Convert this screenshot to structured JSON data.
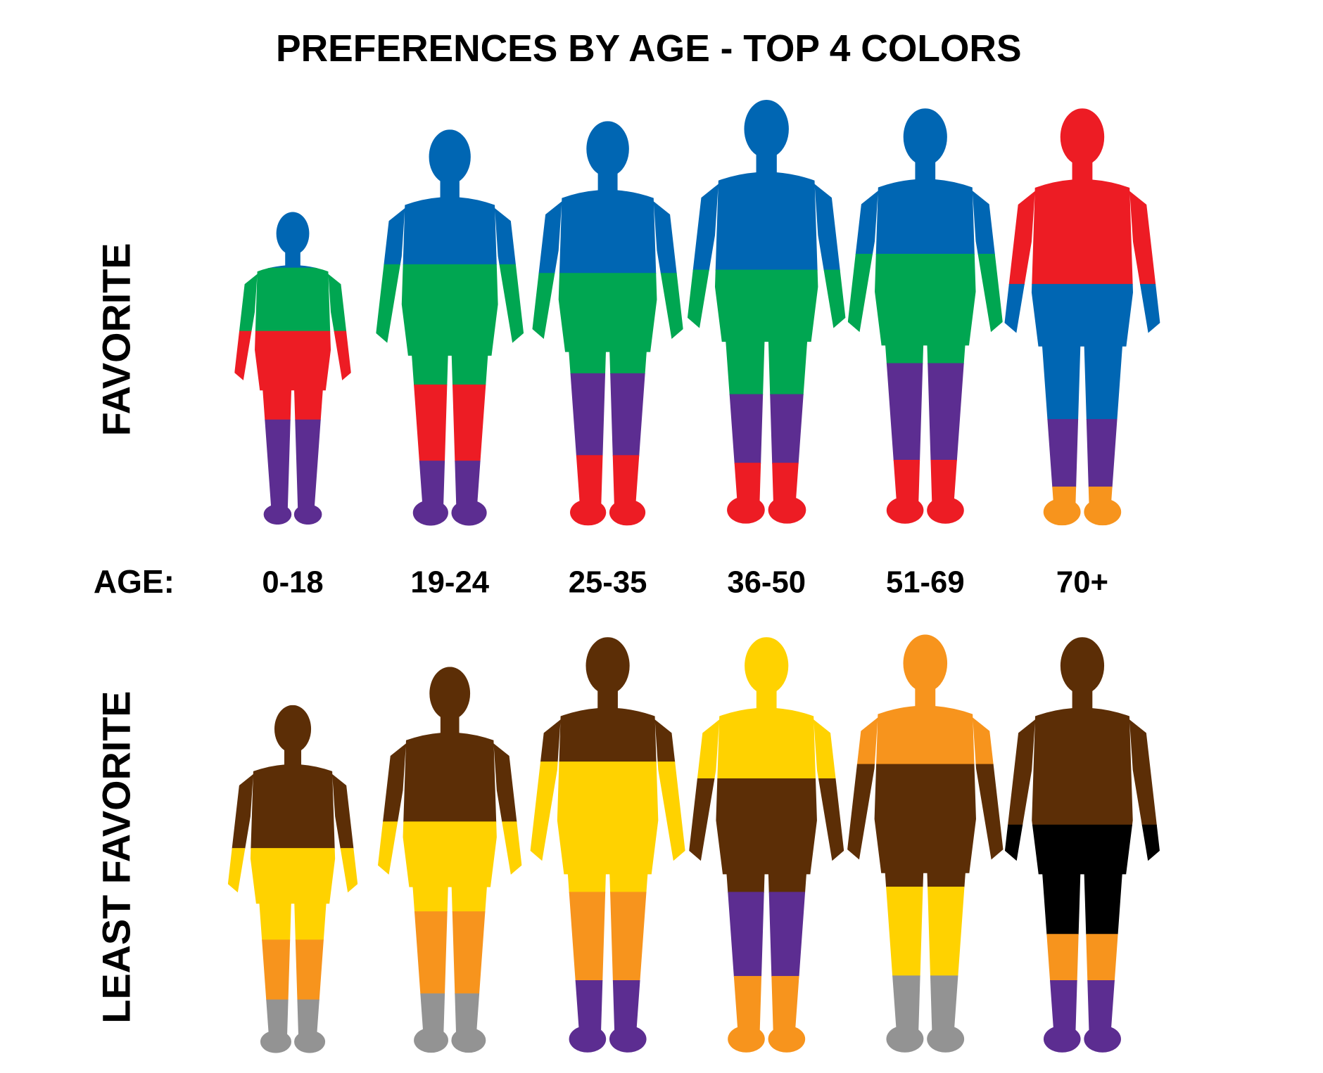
{
  "title": "PREFERENCES BY AGE - TOP 4 COLORS",
  "favorite_label": "FAVORITE",
  "least_favorite_label": "LEAST FAVORITE",
  "age_label": "AGE:",
  "groups": [
    {
      "age": "0-18",
      "favorite": [
        "#0066b3",
        "#00a651",
        "#ed1c24",
        "#5c2d91"
      ],
      "least_favorite": [
        "#5c2e06",
        "#ffd200",
        "#f7941d",
        "#939393"
      ]
    },
    {
      "age": "19-24",
      "favorite": [
        "#0066b3",
        "#00a651",
        "#ed1c24",
        "#5c2d91"
      ],
      "least_favorite": [
        "#5c2e06",
        "#ffd200",
        "#f7941d",
        "#939393"
      ]
    },
    {
      "age": "25-35",
      "favorite": [
        "#0066b3",
        "#00a651",
        "#5c2d91",
        "#ed1c24"
      ],
      "least_favorite": [
        "#5c2e06",
        "#ffd200",
        "#f7941d",
        "#5c2d91"
      ]
    },
    {
      "age": "36-50",
      "favorite": [
        "#0066b3",
        "#00a651",
        "#5c2d91",
        "#ed1c24"
      ],
      "least_favorite": [
        "#ffd200",
        "#5c2e06",
        "#5c2d91",
        "#f7941d"
      ]
    },
    {
      "age": "51-69",
      "favorite": [
        "#0066b3",
        "#00a651",
        "#5c2d91",
        "#ed1c24"
      ],
      "least_favorite": [
        "#f7941d",
        "#5c2e06",
        "#ffd200",
        "#939393"
      ]
    },
    {
      "age": "70+",
      "favorite": [
        "#ed1c24",
        "#0066b3",
        "#5c2d91",
        "#f7941d"
      ],
      "least_favorite": [
        "#5c2e06",
        "#000000",
        "#f7941d",
        "#5c2d91"
      ]
    }
  ]
}
